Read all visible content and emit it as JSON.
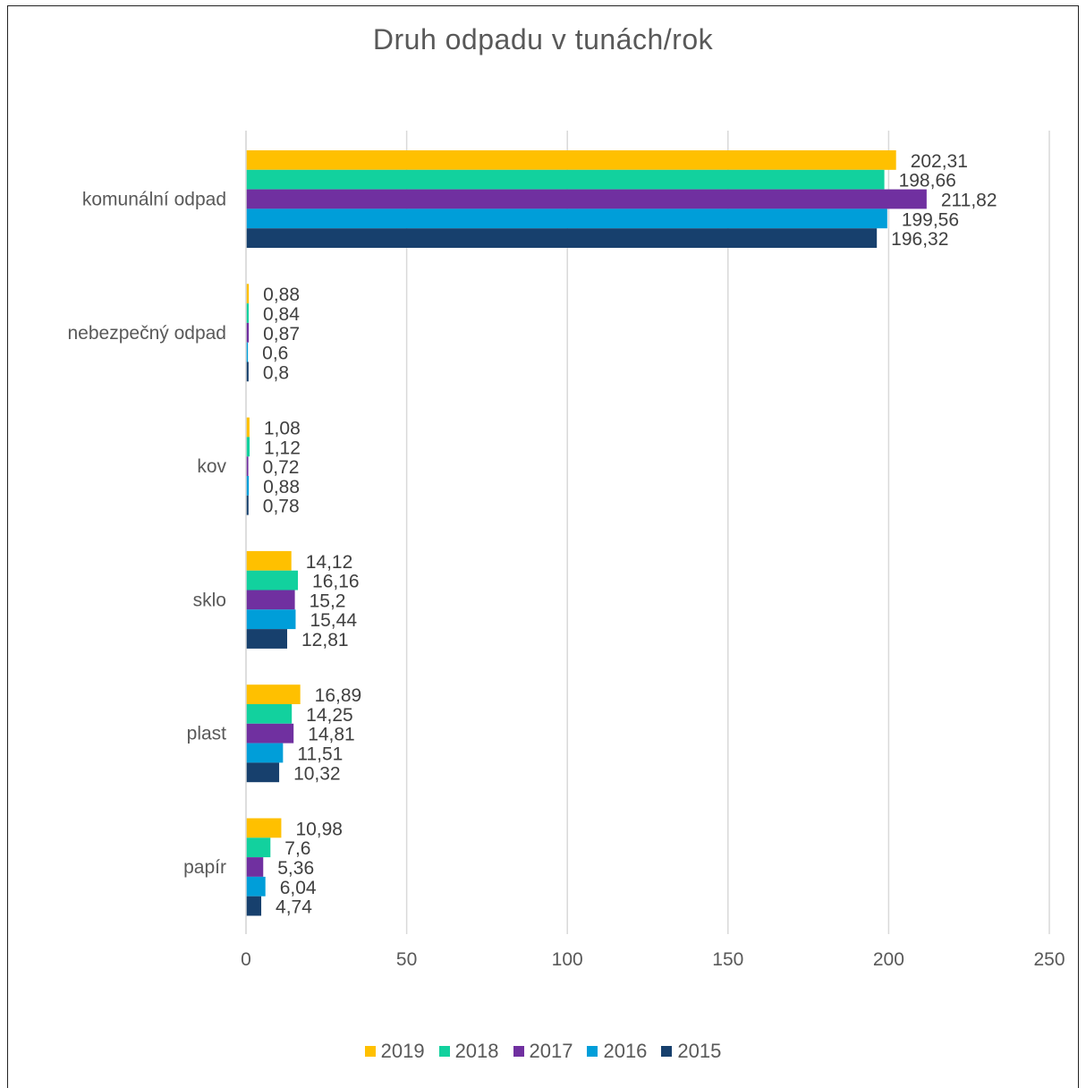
{
  "chart_data": {
    "type": "bar",
    "orientation": "horizontal",
    "title": "Druh odpadu v tunách/rok",
    "categories": [
      "komunální odpad",
      "nebezpečný odpad",
      "kov",
      "sklo",
      "plast",
      "papír"
    ],
    "series": [
      {
        "name": "2019",
        "color": "#FFC000",
        "values": [
          202.31,
          0.88,
          1.08,
          14.12,
          16.89,
          10.98
        ],
        "labels": [
          "202,31",
          "0,88",
          "1,08",
          "14,12",
          "16,89",
          "10,98"
        ]
      },
      {
        "name": "2018",
        "color": "#12D19E",
        "values": [
          198.66,
          0.84,
          1.12,
          16.16,
          14.25,
          7.6
        ],
        "labels": [
          "198,66",
          "0,84",
          "1,12",
          "16,16",
          "14,25",
          "7,6"
        ]
      },
      {
        "name": "2017",
        "color": "#7030A0",
        "values": [
          211.82,
          0.87,
          0.72,
          15.2,
          14.81,
          5.36
        ],
        "labels": [
          "211,82",
          "0,87",
          "0,72",
          "15,2",
          "14,81",
          "5,36"
        ]
      },
      {
        "name": "2016",
        "color": "#009ED9",
        "values": [
          199.56,
          0.6,
          0.88,
          15.44,
          11.51,
          6.04
        ],
        "labels": [
          "199,56",
          "0,6",
          "0,88",
          "15,44",
          "11,51",
          "6,04"
        ]
      },
      {
        "name": "2015",
        "color": "#17406D",
        "values": [
          196.32,
          0.8,
          0.78,
          12.81,
          10.32,
          4.74
        ],
        "labels": [
          "196,32",
          "0,8",
          "0,78",
          "12,81",
          "10,32",
          "4,74"
        ]
      }
    ],
    "xlim": [
      0,
      250
    ],
    "xticks": [
      0,
      50,
      100,
      150,
      200,
      250
    ],
    "xtick_labels": [
      "0",
      "50",
      "100",
      "150",
      "200",
      "250"
    ],
    "grid": "vertical",
    "legend": "bottom"
  }
}
